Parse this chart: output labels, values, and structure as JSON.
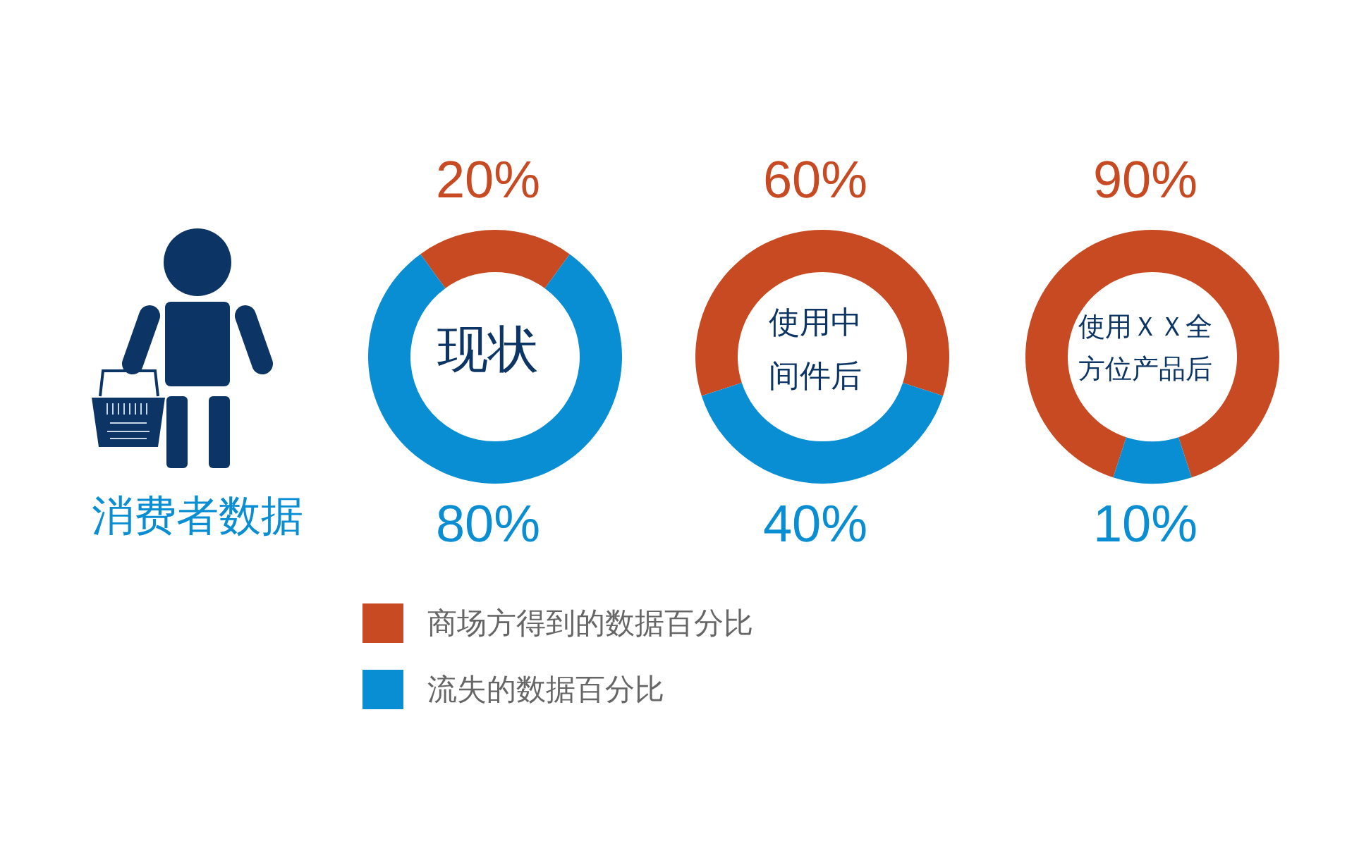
{
  "chart_data": [
    {
      "type": "other",
      "title": "消费者数据"
    },
    {
      "type": "donut",
      "title": "现状",
      "categories": [
        "商场方得到的数据百分比",
        "流失的数据百分比"
      ],
      "values": [
        20,
        80
      ],
      "colors": [
        "#c84a22",
        "#0a8ed3"
      ],
      "value_labels": [
        "20%",
        "80%"
      ],
      "legend": "bottom"
    },
    {
      "type": "donut",
      "title": "使用中间件后",
      "categories": [
        null,
        null
      ],
      "values": [
        60,
        40
      ],
      "colors": [
        "#c84a22",
        "#0a8ed3"
      ],
      "value_labels": [
        "60%",
        "40%"
      ]
    },
    {
      "type": "donut",
      "title": "使用ＸＸ全方位产品后",
      "categories": [
        null,
        null
      ],
      "values": [
        90,
        10
      ],
      "colors": [
        "#c84a22",
        "#0a8ed3"
      ],
      "value_labels": [
        "90%",
        "10%"
      ]
    }
  ]
}
